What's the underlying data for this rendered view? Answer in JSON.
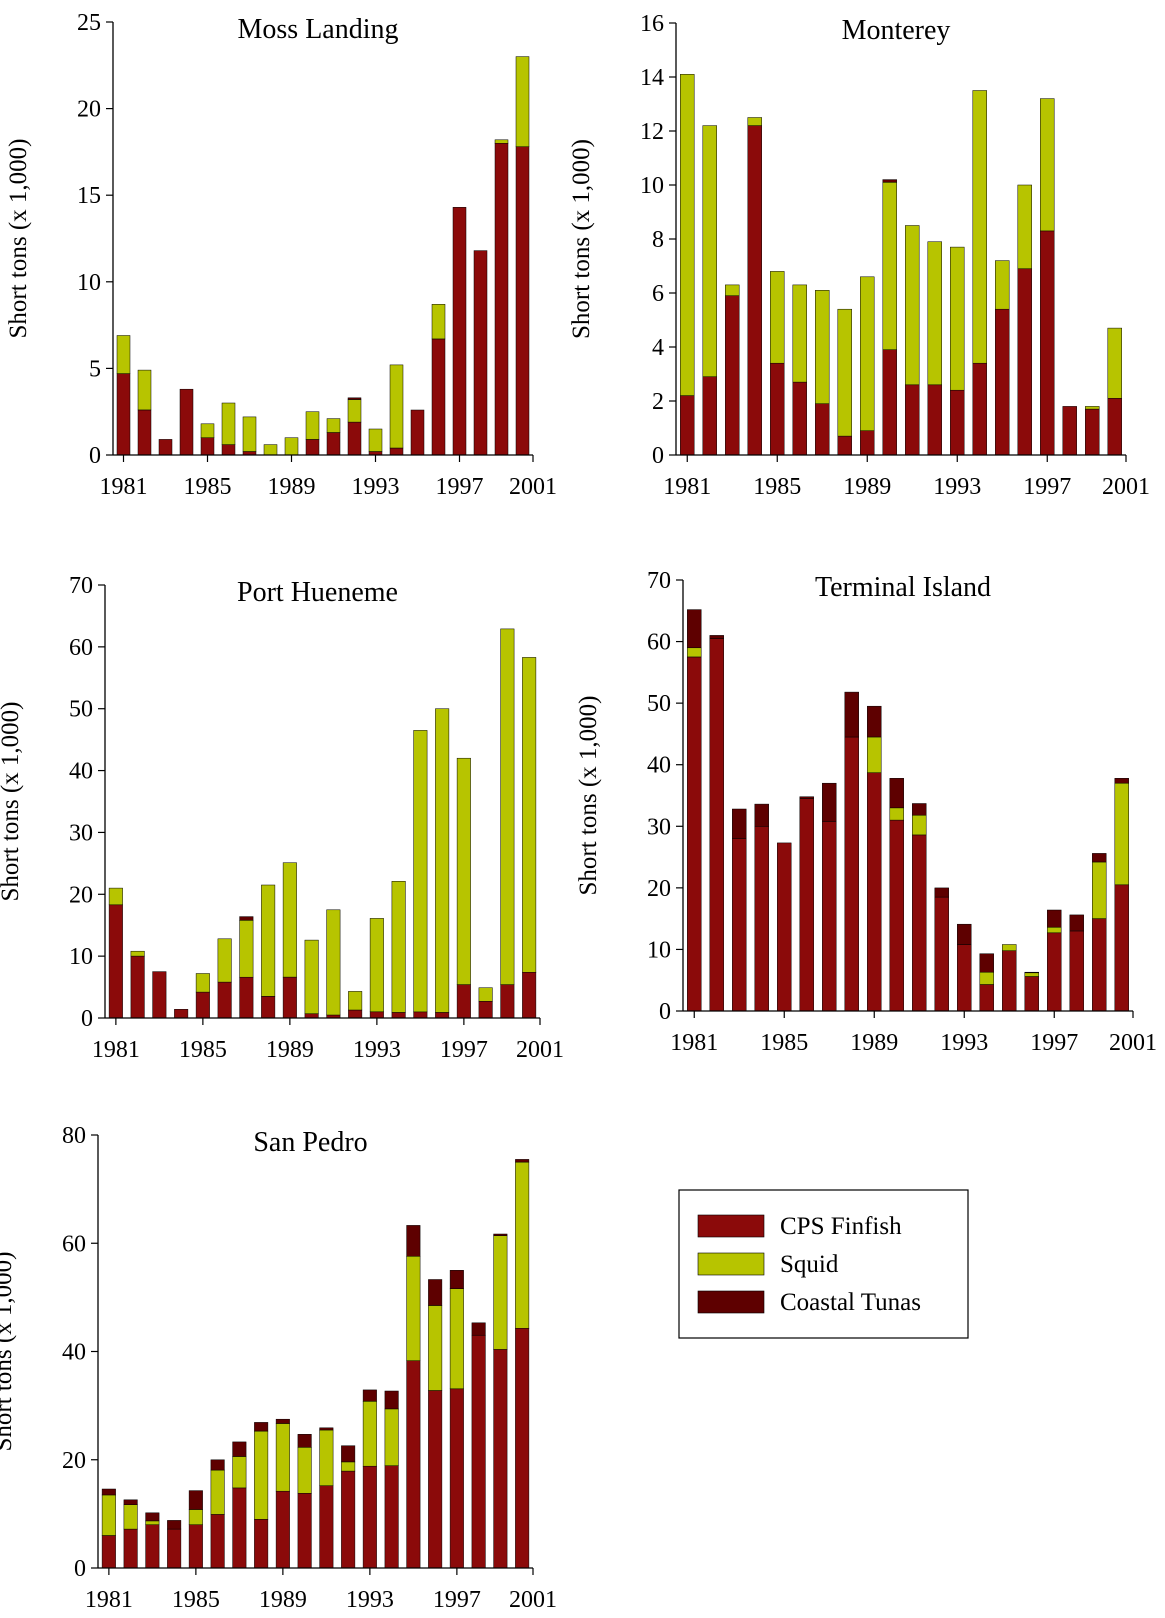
{
  "colors": {
    "finfish": "#8B0A0A",
    "squid": "#B7C400",
    "tunas": "#5E0000",
    "axis": "#000000"
  },
  "legend": {
    "items": [
      {
        "key": "finfish",
        "label": "CPS Finfish"
      },
      {
        "key": "squid",
        "label": "Squid"
      },
      {
        "key": "tunas",
        "label": "Coastal Tunas"
      }
    ]
  },
  "chart_data": [
    {
      "type": "bar",
      "stacked": true,
      "title": "Moss Landing",
      "ylabel": "Short tons (x 1,000)",
      "ylim": [
        0,
        25
      ],
      "yticks": [
        0,
        5,
        10,
        15,
        20,
        25
      ],
      "xticks": [
        "1981",
        "1985",
        "1989",
        "1993",
        "1997",
        "2001"
      ],
      "categories": [
        1981,
        1982,
        1983,
        1984,
        1985,
        1986,
        1987,
        1988,
        1989,
        1990,
        1991,
        1992,
        1993,
        1994,
        1995,
        1996,
        1997,
        1998,
        1999,
        2000
      ],
      "series": [
        {
          "name": "CPS Finfish",
          "key": "finfish",
          "values": [
            4.7,
            2.6,
            0.9,
            3.8,
            1.0,
            0.6,
            0.2,
            0,
            0,
            0.9,
            1.3,
            1.9,
            0.2,
            0.4,
            2.6,
            6.7,
            14.3,
            11.8,
            18.0,
            17.8
          ]
        },
        {
          "name": "Squid",
          "key": "squid",
          "values": [
            2.2,
            2.3,
            0,
            0,
            0.8,
            2.4,
            2.0,
            0.6,
            1.0,
            1.6,
            0.8,
            1.3,
            1.3,
            4.8,
            0,
            2.0,
            0,
            0,
            0.2,
            5.2
          ]
        },
        {
          "name": "Coastal Tunas",
          "key": "tunas",
          "values": [
            0,
            0,
            0,
            0,
            0,
            0,
            0,
            0,
            0,
            0,
            0,
            0.1,
            0,
            0,
            0,
            0,
            0,
            0,
            0,
            0
          ]
        }
      ]
    },
    {
      "type": "bar",
      "stacked": true,
      "title": "Monterey",
      "ylabel": "Short tons (x 1,000)",
      "ylim": [
        0,
        16
      ],
      "yticks": [
        0,
        2,
        4,
        6,
        8,
        10,
        12,
        14,
        16
      ],
      "xticks": [
        "1981",
        "1985",
        "1989",
        "1993",
        "1997",
        "2001"
      ],
      "categories": [
        1981,
        1982,
        1983,
        1984,
        1985,
        1986,
        1987,
        1988,
        1989,
        1990,
        1991,
        1992,
        1993,
        1994,
        1995,
        1996,
        1997,
        1998,
        1999,
        2000
      ],
      "series": [
        {
          "name": "CPS Finfish",
          "key": "finfish",
          "values": [
            2.2,
            2.9,
            5.9,
            12.2,
            3.4,
            2.7,
            1.9,
            0.7,
            0.9,
            3.9,
            2.6,
            2.6,
            2.4,
            3.4,
            5.4,
            6.9,
            8.3,
            1.8,
            1.7,
            2.1
          ]
        },
        {
          "name": "Squid",
          "key": "squid",
          "values": [
            11.9,
            9.3,
            0.4,
            0.3,
            3.4,
            3.6,
            4.2,
            4.7,
            5.7,
            6.2,
            5.9,
            5.3,
            5.3,
            10.1,
            1.8,
            3.1,
            4.9,
            0,
            0.1,
            2.6
          ]
        },
        {
          "name": "Coastal Tunas",
          "key": "tunas",
          "values": [
            0,
            0,
            0,
            0,
            0,
            0,
            0,
            0,
            0,
            0.1,
            0,
            0,
            0,
            0,
            0,
            0,
            0,
            0,
            0,
            0
          ]
        }
      ]
    },
    {
      "type": "bar",
      "stacked": true,
      "title": "Port Hueneme",
      "ylabel": "Short tons (x 1,000)",
      "ylim": [
        0,
        70
      ],
      "yticks": [
        0,
        10,
        20,
        30,
        40,
        50,
        60,
        70
      ],
      "xticks": [
        "1981",
        "1985",
        "1989",
        "1993",
        "1997",
        "2001"
      ],
      "categories": [
        1981,
        1982,
        1983,
        1984,
        1985,
        1986,
        1987,
        1988,
        1989,
        1990,
        1991,
        1992,
        1993,
        1994,
        1995,
        1996,
        1997,
        1998,
        1999,
        2000
      ],
      "series": [
        {
          "name": "CPS Finfish",
          "key": "finfish",
          "values": [
            18.3,
            10.0,
            7.5,
            1.4,
            4.2,
            5.8,
            6.6,
            3.5,
            6.6,
            0.7,
            0.5,
            1.3,
            1.0,
            0.9,
            1.0,
            0.9,
            5.4,
            2.7,
            5.4,
            7.4
          ]
        },
        {
          "name": "Squid",
          "key": "squid",
          "values": [
            2.7,
            0.8,
            0,
            0,
            3.0,
            7.0,
            9.2,
            18.0,
            18.5,
            11.9,
            17.0,
            3.0,
            15.1,
            21.2,
            45.5,
            49.1,
            36.6,
            2.2,
            57.5,
            50.9
          ]
        },
        {
          "name": "Coastal Tunas",
          "key": "tunas",
          "values": [
            0,
            0,
            0,
            0,
            0,
            0,
            0.6,
            0,
            0,
            0,
            0,
            0,
            0,
            0,
            0,
            0,
            0,
            0,
            0,
            0
          ]
        }
      ]
    },
    {
      "type": "bar",
      "stacked": true,
      "title": "Terminal Island",
      "ylabel": "Short tons (x 1,000)",
      "ylim": [
        0,
        70
      ],
      "yticks": [
        0,
        10,
        20,
        30,
        40,
        50,
        60,
        70
      ],
      "xticks": [
        "1981",
        "1985",
        "1989",
        "1993",
        "1997",
        "2001"
      ],
      "categories": [
        1981,
        1982,
        1983,
        1984,
        1985,
        1986,
        1987,
        1988,
        1989,
        1990,
        1991,
        1992,
        1993,
        1994,
        1995,
        1996,
        1997,
        1998,
        1999,
        2000
      ],
      "series": [
        {
          "name": "CPS Finfish",
          "key": "finfish",
          "values": [
            57.5,
            60.5,
            28.0,
            30.0,
            27.3,
            34.5,
            30.8,
            44.5,
            38.7,
            31.0,
            28.6,
            18.5,
            10.8,
            4.3,
            9.8,
            5.6,
            12.7,
            13.0,
            15.0,
            20.5
          ]
        },
        {
          "name": "Squid",
          "key": "squid",
          "values": [
            1.5,
            0,
            0,
            0,
            0,
            0,
            0,
            0,
            5.8,
            2.0,
            3.2,
            0,
            0,
            2.0,
            1.0,
            0.6,
            0.9,
            0,
            9.2,
            16.5
          ]
        },
        {
          "name": "Coastal Tunas",
          "key": "tunas",
          "values": [
            6.2,
            0.5,
            4.8,
            3.6,
            0,
            0.3,
            6.2,
            7.3,
            5.0,
            4.8,
            1.9,
            1.5,
            3.3,
            3.0,
            0,
            0.1,
            2.8,
            2.6,
            1.4,
            0.8
          ]
        }
      ]
    },
    {
      "type": "bar",
      "stacked": true,
      "title": "San Pedro",
      "ylabel": "Short tons (x 1,000)",
      "ylim": [
        0,
        80
      ],
      "yticks": [
        0,
        20,
        40,
        60,
        80
      ],
      "xticks": [
        "1981",
        "1985",
        "1989",
        "1993",
        "1997",
        "2001"
      ],
      "categories": [
        1981,
        1982,
        1983,
        1984,
        1985,
        1986,
        1987,
        1988,
        1989,
        1990,
        1991,
        1992,
        1993,
        1994,
        1995,
        1996,
        1997,
        1998,
        1999,
        2000
      ],
      "series": [
        {
          "name": "CPS Finfish",
          "key": "finfish",
          "values": [
            6.0,
            7.2,
            8.0,
            7.2,
            8.0,
            9.9,
            14.8,
            9.0,
            14.2,
            13.8,
            15.2,
            17.9,
            18.8,
            18.9,
            38.3,
            32.8,
            33.1,
            43.0,
            40.4,
            44.3
          ]
        },
        {
          "name": "Squid",
          "key": "squid",
          "values": [
            7.5,
            4.5,
            0.7,
            0,
            2.8,
            8.2,
            5.8,
            16.3,
            12.5,
            8.5,
            10.3,
            1.7,
            12.0,
            10.5,
            19.3,
            15.7,
            18.5,
            0,
            21.0,
            30.7
          ]
        },
        {
          "name": "Coastal Tunas",
          "key": "tunas",
          "values": [
            1.1,
            0.9,
            1.5,
            1.6,
            3.5,
            1.9,
            2.7,
            1.6,
            0.8,
            2.4,
            0.4,
            3.0,
            2.1,
            3.3,
            5.7,
            4.8,
            3.4,
            2.3,
            0.3,
            0.5
          ]
        }
      ]
    }
  ]
}
